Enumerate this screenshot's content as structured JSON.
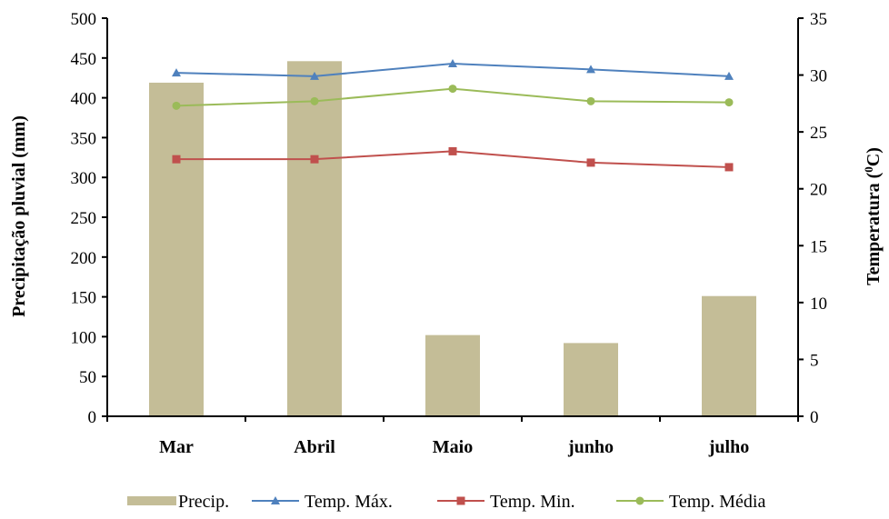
{
  "chart_data": {
    "type": "bar+line",
    "categories": [
      "Mar",
      "Abril",
      "Maio",
      "junho",
      "julho"
    ],
    "ylabel_left": "Precipitação pluvial (mm)",
    "ylabel_right_prefix": "Temperatura (",
    "ylabel_right_sup": "0",
    "ylabel_right_suffix": "C)",
    "ylim_left": [
      0,
      500
    ],
    "ylim_right": [
      0,
      35
    ],
    "yticks_left": [
      "0",
      "50",
      "100",
      "150",
      "200",
      "250",
      "300",
      "350",
      "400",
      "450",
      "500"
    ],
    "yticks_right": [
      "0",
      "5",
      "10",
      "15",
      "20",
      "25",
      "30",
      "35"
    ],
    "legend_position": "bottom",
    "series": [
      {
        "name": "Precip.",
        "type": "bar",
        "axis": "left",
        "color": "#c4bd97",
        "values": [
          419,
          446,
          102,
          92,
          151
        ]
      },
      {
        "name": "Temp. Máx.",
        "type": "line",
        "axis": "right",
        "marker": "triangle",
        "color": "#4f81bd",
        "values": [
          30.2,
          29.9,
          31.0,
          30.5,
          29.9
        ]
      },
      {
        "name": "Temp. Min.",
        "type": "line",
        "axis": "right",
        "marker": "square",
        "color": "#c0504d",
        "values": [
          22.6,
          22.6,
          23.3,
          22.3,
          21.9
        ]
      },
      {
        "name": "Temp. Média",
        "type": "line",
        "axis": "right",
        "marker": "circle",
        "color": "#9bbb59",
        "values": [
          27.3,
          27.7,
          28.8,
          27.7,
          27.6
        ]
      }
    ]
  }
}
